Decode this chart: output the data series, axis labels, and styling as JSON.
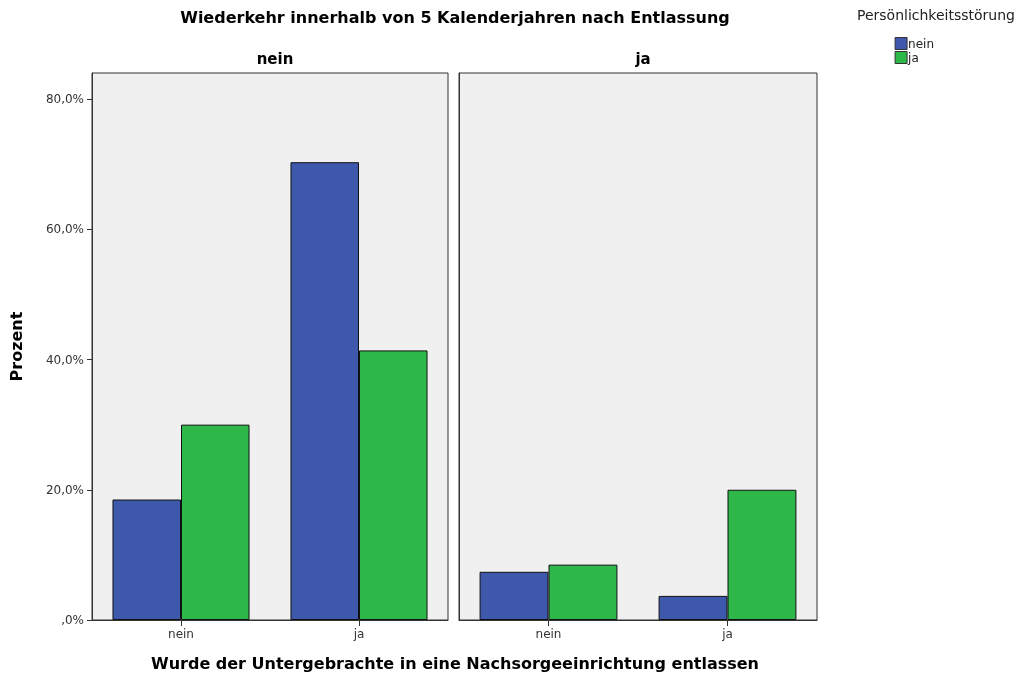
{
  "chart_data": [
    {
      "type": "bar",
      "title": "Wiederkehr innerhalb von 5 Kalenderjahren nach Entlassung",
      "subtitle": "nein",
      "ylabel": "Prozent",
      "xlabel": "Wurde der Untergebrachte in eine Nachsorgeeinrichtung entlassen",
      "categories": [
        "nein",
        "ja"
      ],
      "series": [
        {
          "color": "#3e58ac",
          "values": [
            18.5,
            70.3
          ]
        },
        {
          "color": "#2eb84a",
          "values": [
            30.0,
            41.4
          ]
        }
      ],
      "ylim": [
        0,
        84
      ],
      "yticks": [
        {
          "value": 0,
          "label": ",0%"
        },
        {
          "value": 20,
          "label": "20,0%"
        },
        {
          "value": 40,
          "label": "40,0%"
        },
        {
          "value": 60,
          "label": "60,0%"
        },
        {
          "value": 80,
          "label": "80,0%"
        }
      ],
      "legend": false
    },
    {
      "type": "bar",
      "subtitle": "ja",
      "legend_title": "Persönlichkeitsstörung",
      "legend": "top right",
      "categories": [
        "nein",
        "ja"
      ],
      "series": [
        {
          "name": "nein",
          "color": "#3e58ac",
          "values": [
            7.4,
            3.7
          ]
        },
        {
          "name": "ja",
          "color": "#2eb84a",
          "values": [
            8.5,
            20.0
          ]
        }
      ],
      "ylim": [
        0,
        84
      ],
      "tick_labels": "x"
    }
  ]
}
